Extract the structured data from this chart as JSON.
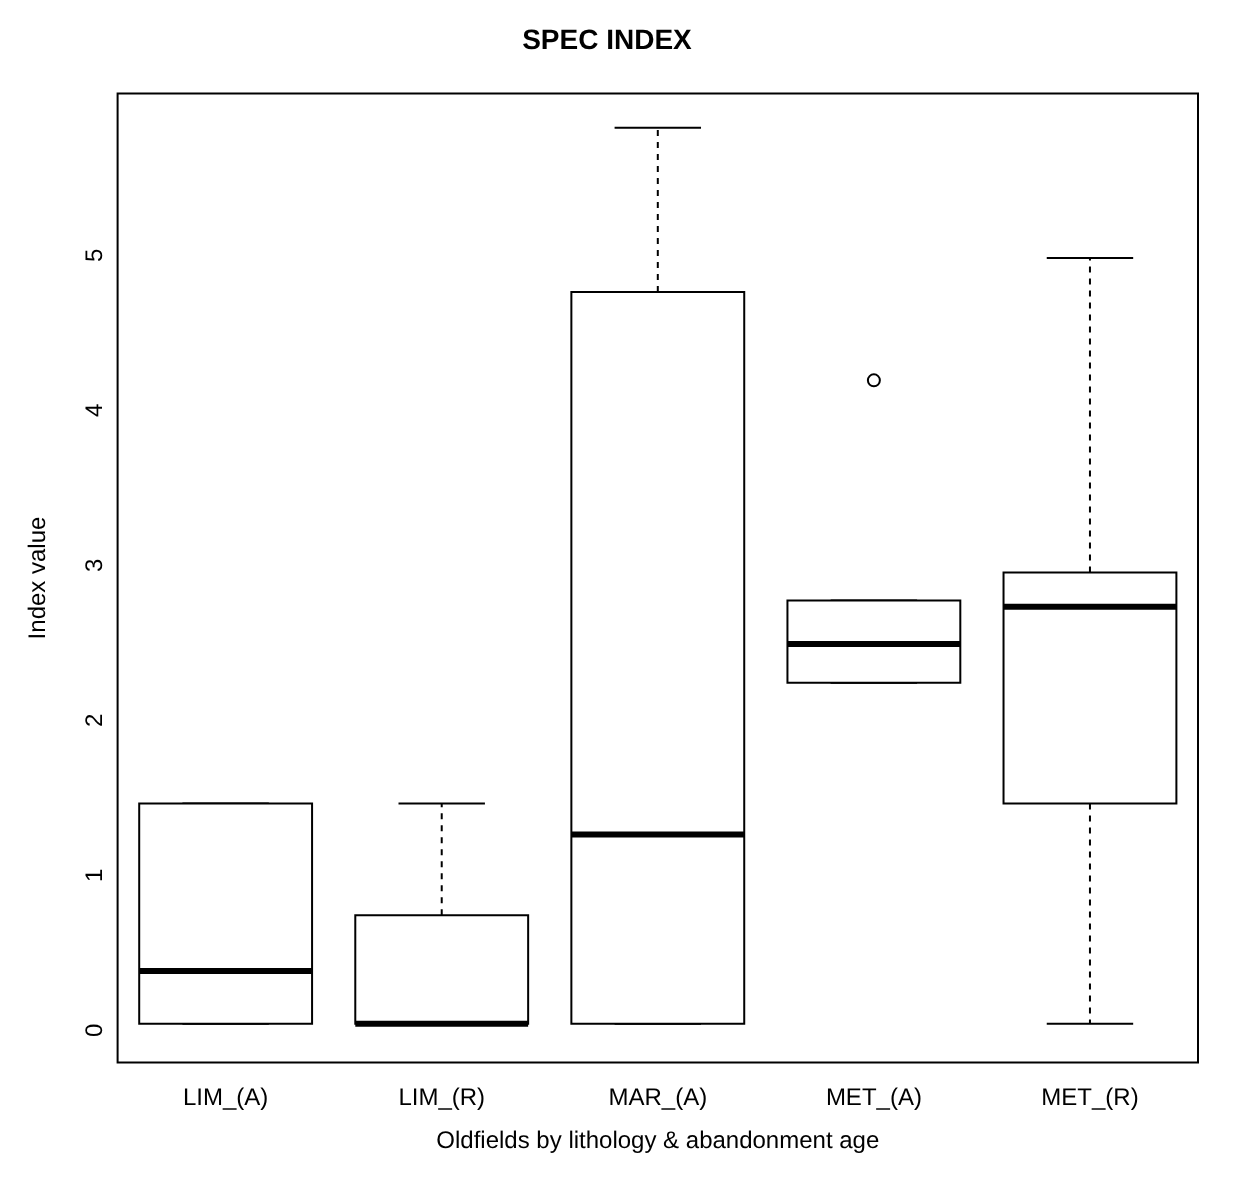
{
  "chart_data": {
    "type": "box",
    "title": "SPEC INDEX",
    "xlabel": "Oldfields by lithology & abandonment age",
    "ylabel": "Index value",
    "categories": [
      "LIM_(A)",
      "LIM_(R)",
      "MAR_(A)",
      "MET_(A)",
      "MET_(R)"
    ],
    "boxes": [
      {
        "low": 0,
        "q1": 0,
        "median": 0.34,
        "q3": 1.42,
        "high": 1.42
      },
      {
        "low": 0,
        "q1": 0,
        "median": 0,
        "q3": 0.7,
        "high": 1.42
      },
      {
        "low": 0,
        "q1": 0,
        "median": 1.22,
        "q3": 4.72,
        "high": 5.78
      },
      {
        "low": 2.2,
        "q1": 2.2,
        "median": 2.45,
        "q3": 2.73,
        "high": 2.73,
        "outliers": [
          4.15
        ]
      },
      {
        "low": 0,
        "q1": 1.42,
        "median": 2.69,
        "q3": 2.91,
        "high": 4.94
      }
    ],
    "ylim": [
      -0.25,
      6.0
    ],
    "yticks": [
      0,
      1,
      2,
      3,
      4,
      5
    ]
  }
}
